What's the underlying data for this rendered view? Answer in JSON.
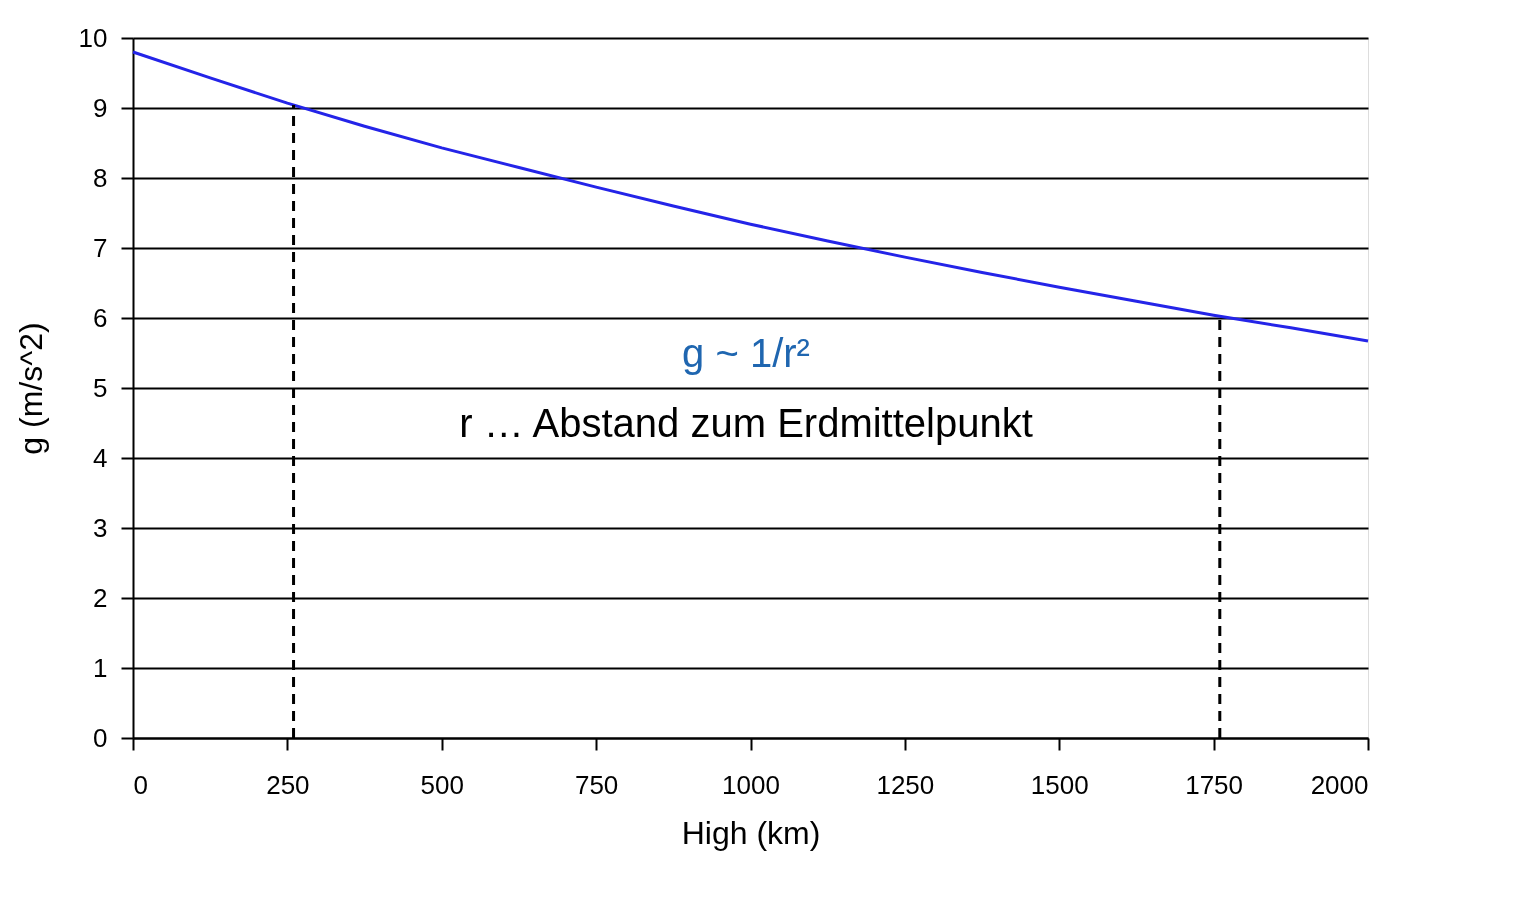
{
  "chart_data": {
    "type": "line",
    "xlabel": "High (km)",
    "ylabel": "g (m/s^2)",
    "x": [
      0,
      125,
      250,
      375,
      500,
      625,
      750,
      875,
      1000,
      1125,
      1250,
      1375,
      1500,
      1625,
      1750,
      1875,
      2000
    ],
    "series": [
      {
        "color": "#2424e8",
        "values": [
          9.8,
          9.43,
          9.07,
          8.74,
          8.43,
          8.15,
          7.87,
          7.6,
          7.34,
          7.1,
          6.87,
          6.65,
          6.44,
          6.24,
          6.04,
          5.86,
          5.67
        ]
      }
    ],
    "xlim": [
      0,
      2000
    ],
    "xticks": [
      0,
      250,
      500,
      750,
      1000,
      1250,
      1500,
      1750,
      2000
    ],
    "ylim": [
      0,
      10
    ],
    "yticks": [
      0,
      1,
      2,
      3,
      4,
      5,
      6,
      7,
      8,
      9,
      10
    ],
    "grid": "y",
    "marker": "none",
    "line_style": "solid",
    "ref_lines": [
      {
        "axis": "x",
        "value": 260,
        "line_style": "dashed",
        "color": "#000000"
      },
      {
        "axis": "x",
        "value": 1760,
        "line_style": "dashed",
        "color": "#000000"
      }
    ],
    "annotations": [
      "g ~ 1/r²",
      "r … Abstand zum Erdmittelpunkt"
    ]
  }
}
